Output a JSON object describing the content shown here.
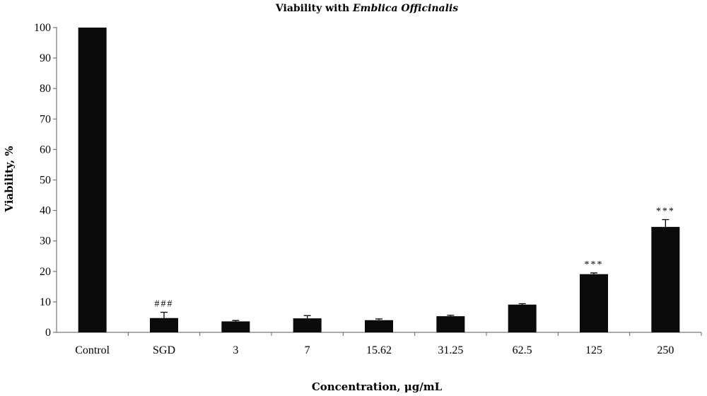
{
  "chart_data": {
    "type": "bar",
    "title": "Viability with",
    "title_italic": "Emblica Officinalis",
    "xlabel": "Concentration, μg/mL",
    "ylabel": "Viability, %",
    "ylim": [
      0,
      100
    ],
    "yticks": [
      0,
      10,
      20,
      30,
      40,
      50,
      60,
      70,
      80,
      90,
      100
    ],
    "categories": [
      "Control",
      "SGD",
      "3",
      "7",
      "15.62",
      "31.25",
      "62.5",
      "125",
      "250"
    ],
    "values": [
      100,
      4.7,
      3.6,
      4.6,
      4.0,
      5.3,
      9.1,
      19.1,
      34.6
    ],
    "errors": [
      0,
      1.9,
      0.3,
      0.9,
      0.4,
      0.3,
      0.3,
      0.4,
      2.4
    ],
    "annotations": [
      "",
      "###",
      "",
      "",
      "",
      "",
      "",
      "***",
      "***"
    ],
    "bar_color": "#0b0b0b",
    "grid": false,
    "legend": "none"
  }
}
